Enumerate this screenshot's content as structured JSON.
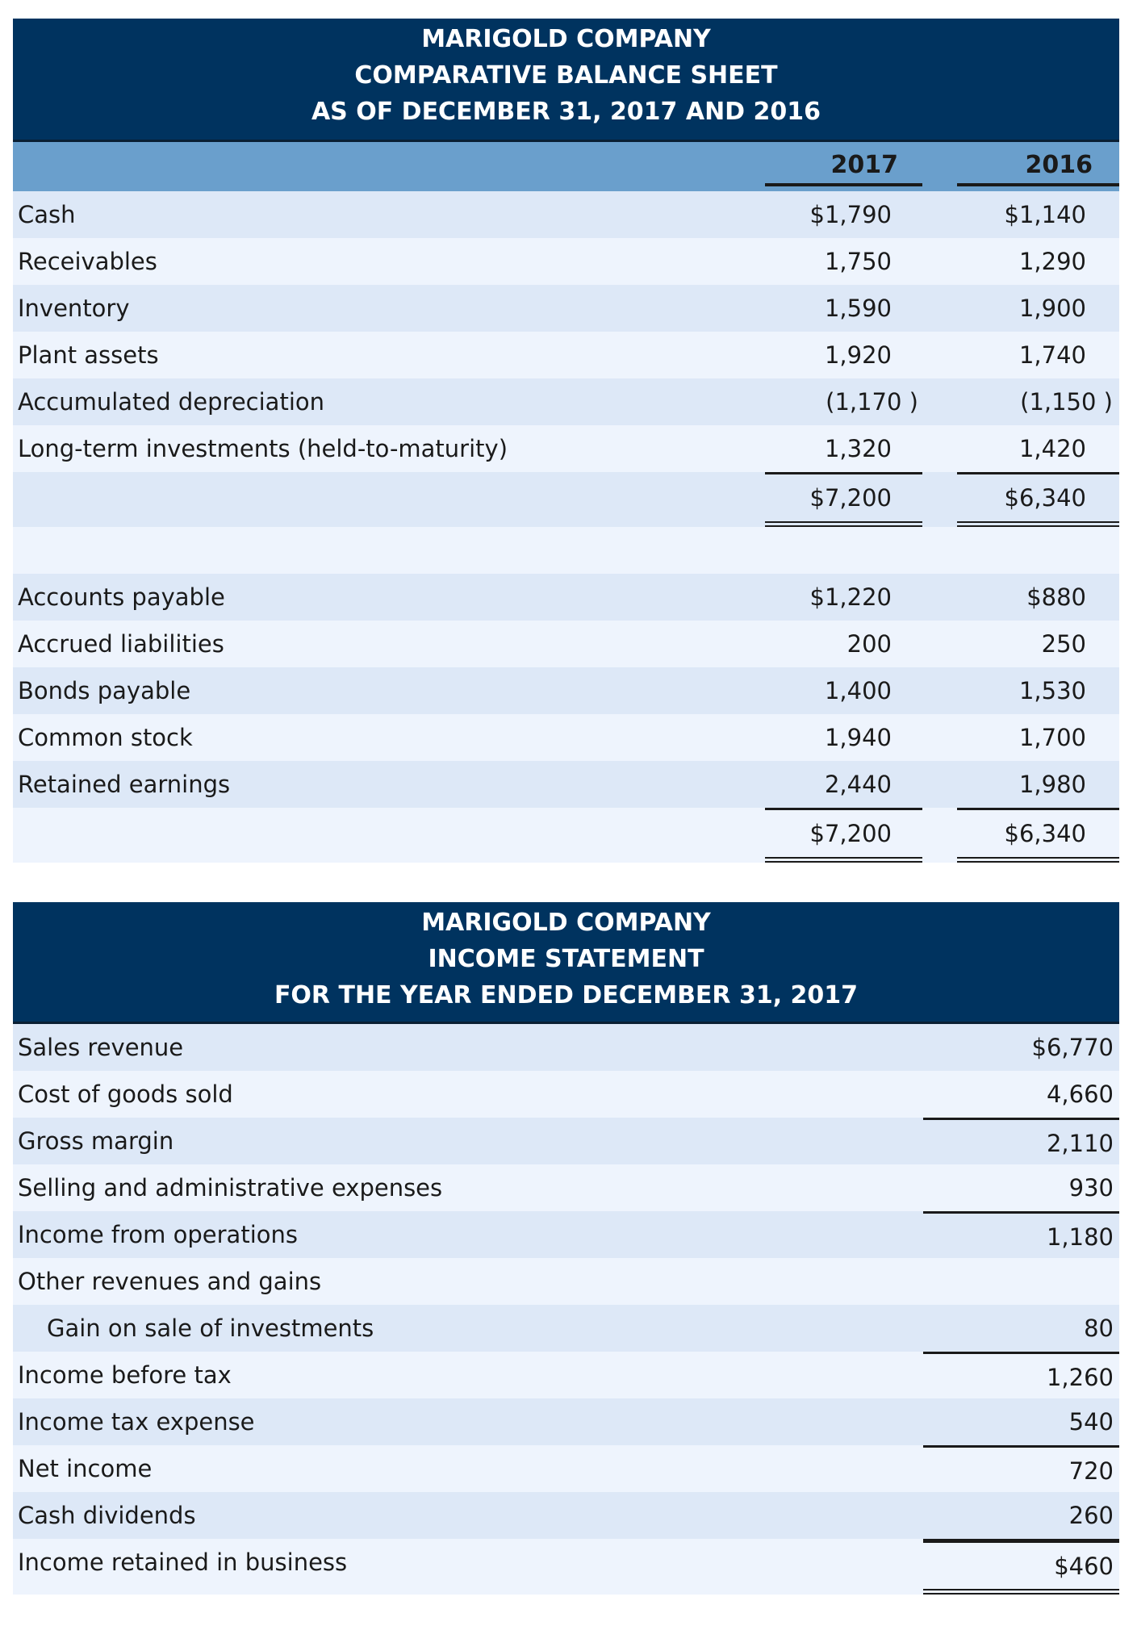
{
  "balance_sheet": {
    "title": [
      "MARIGOLD COMPANY",
      "COMPARATIVE BALANCE SHEET",
      "AS OF DECEMBER 31, 2017 AND 2016"
    ],
    "years": [
      "2017",
      "2016"
    ],
    "rows": [
      {
        "label": "Cash",
        "v2017": "$1,790",
        "v2016": "$1,140"
      },
      {
        "label": "Receivables",
        "v2017": "1,750",
        "v2016": "1,290"
      },
      {
        "label": "Inventory",
        "v2017": "1,590",
        "v2016": "1,900"
      },
      {
        "label": "Plant assets",
        "v2017": "1,920",
        "v2016": "1,740"
      },
      {
        "label": "Accumulated depreciation",
        "v2017": "(1,170 )",
        "v2016": "(1,150 )"
      },
      {
        "label": "Long-term investments (held-to-maturity)",
        "v2017": "1,320",
        "v2016": "1,420"
      },
      {
        "label": "",
        "v2017": "$7,200",
        "v2016": "$6,340"
      },
      {
        "label": "",
        "v2017": "",
        "v2016": ""
      },
      {
        "label": "Accounts payable",
        "v2017": "$1,220",
        "v2016": "$880"
      },
      {
        "label": "Accrued liabilities",
        "v2017": "200",
        "v2016": "250"
      },
      {
        "label": "Bonds payable",
        "v2017": "1,400",
        "v2016": "1,530"
      },
      {
        "label": "Common stock",
        "v2017": "1,940",
        "v2016": "1,700"
      },
      {
        "label": "Retained earnings",
        "v2017": "2,440",
        "v2016": "1,980"
      },
      {
        "label": "",
        "v2017": "$7,200",
        "v2016": "$6,340"
      }
    ]
  },
  "income_statement": {
    "title": [
      "MARIGOLD COMPANY",
      "INCOME STATEMENT",
      "FOR THE YEAR ENDED DECEMBER 31, 2017"
    ],
    "rows": [
      {
        "label": "Sales revenue",
        "value": "$6,770"
      },
      {
        "label": "Cost of goods sold",
        "value": "4,660"
      },
      {
        "label": "Gross margin",
        "value": "2,110"
      },
      {
        "label": "Selling and administrative expenses",
        "value": "930"
      },
      {
        "label": "Income from operations",
        "value": "1,180"
      },
      {
        "label": "Other revenues and gains",
        "value": ""
      },
      {
        "label": "Gain on sale of investments",
        "value": "80"
      },
      {
        "label": "Income before tax",
        "value": "1,260"
      },
      {
        "label": "Income tax expense",
        "value": "540"
      },
      {
        "label": "Net income",
        "value": "720"
      },
      {
        "label": "Cash dividends",
        "value": "260"
      },
      {
        "label": "Income retained in business",
        "value": "$460"
      }
    ]
  },
  "colors": {
    "header": "#00335f",
    "year_row": "#6a9fcc",
    "stripe_dark": "#dde8f7",
    "stripe_light": "#eef4fd"
  }
}
